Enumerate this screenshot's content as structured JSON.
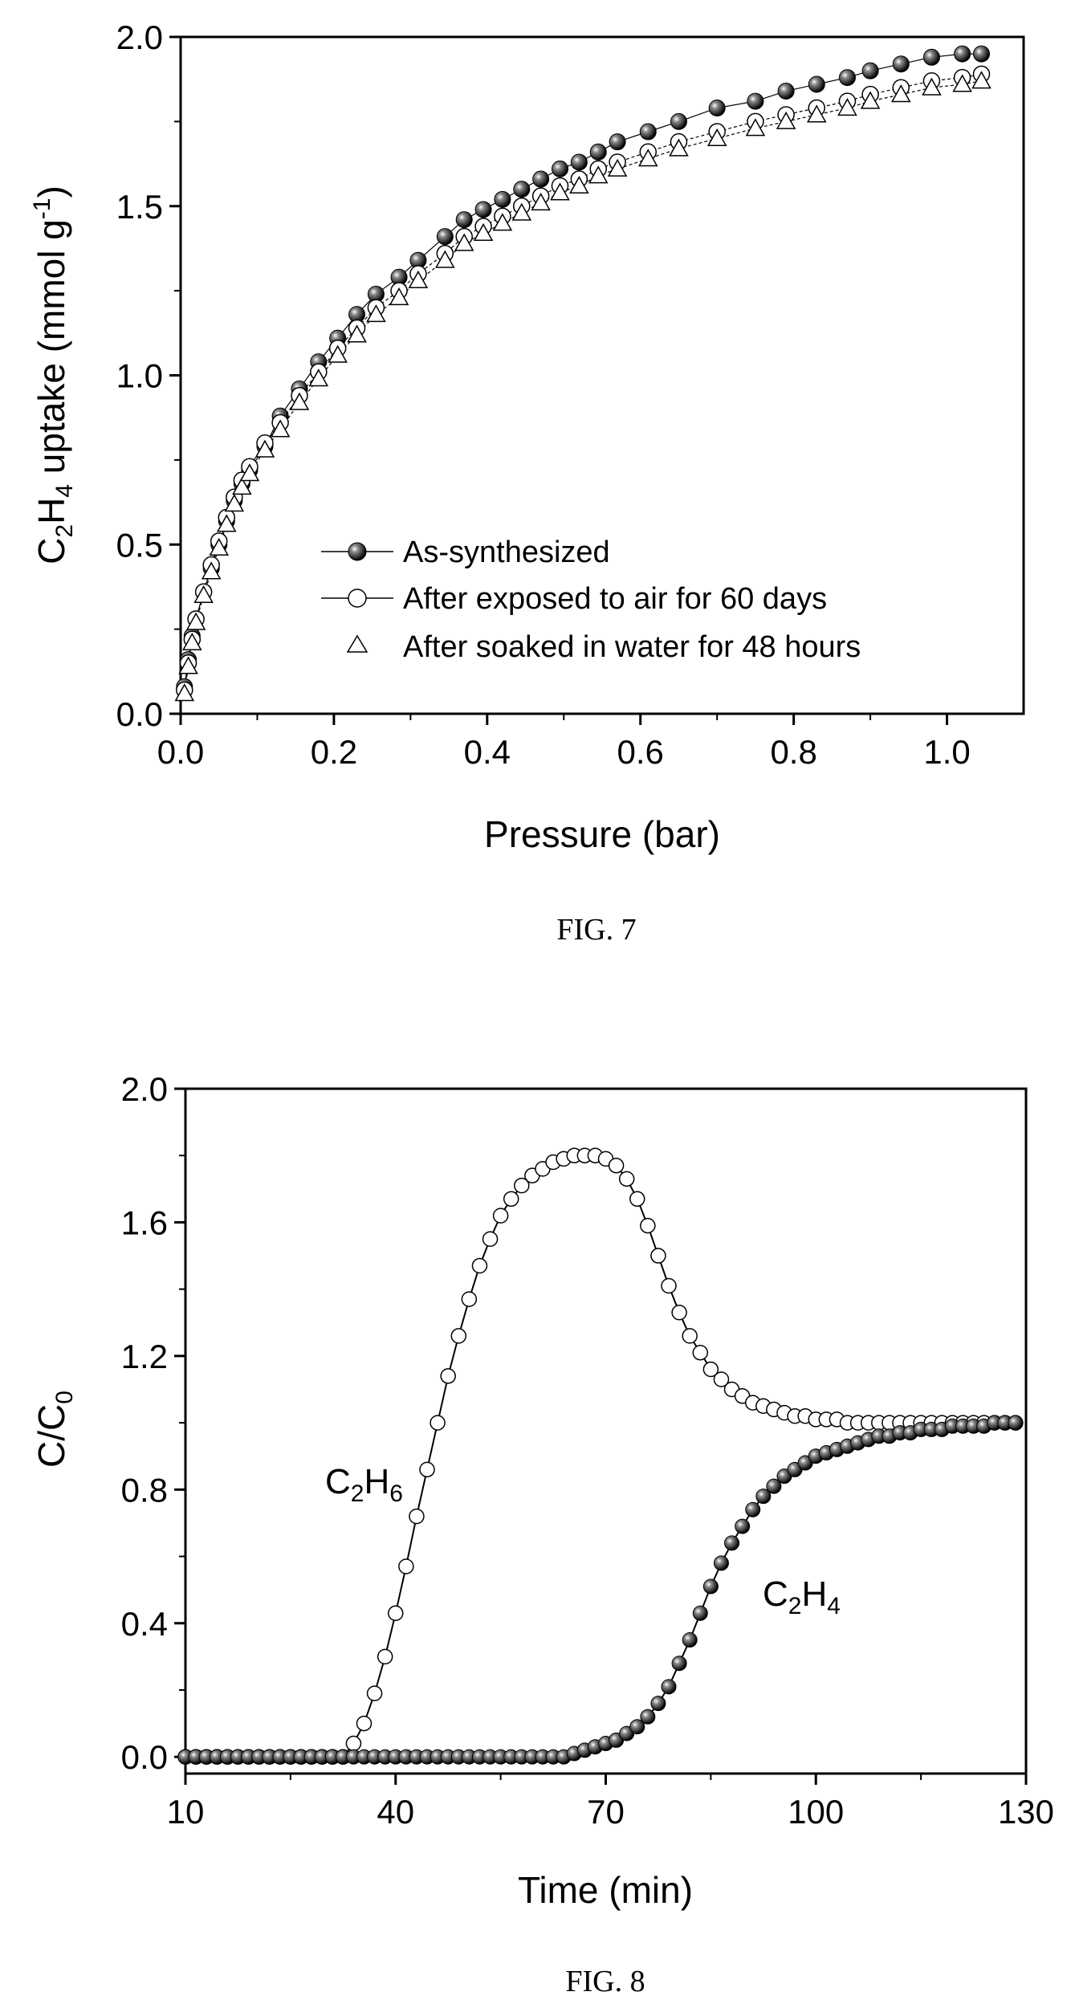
{
  "chart_data": [
    {
      "type": "scatter",
      "caption": "FIG. 7",
      "xlabel": "Pressure (bar)",
      "ylabel": {
        "base": "C",
        "sub1": "2",
        "mid": "H",
        "sub2": "4",
        "rest": " uptake (mmol g",
        "sup": "-1",
        "end": ")"
      },
      "xlim": [
        0.0,
        1.1
      ],
      "ylim": [
        0.0,
        2.0
      ],
      "xticks": [
        "0.0",
        "0.2",
        "0.4",
        "0.6",
        "0.8",
        "1.0"
      ],
      "xtick_values": [
        0.0,
        0.2,
        0.4,
        0.6,
        0.8,
        1.0
      ],
      "yticks": [
        "0.0",
        "0.5",
        "1.0",
        "1.5",
        "2.0"
      ],
      "ytick_values": [
        0.0,
        0.5,
        1.0,
        1.5,
        2.0
      ],
      "grid": false,
      "legend_position": "bottom-right",
      "series": [
        {
          "name": "As-synthesized",
          "marker": "filled-circle",
          "x": [
            0.005,
            0.01,
            0.015,
            0.02,
            0.03,
            0.04,
            0.05,
            0.06,
            0.07,
            0.08,
            0.09,
            0.11,
            0.13,
            0.155,
            0.18,
            0.205,
            0.23,
            0.255,
            0.285,
            0.31,
            0.345,
            0.37,
            0.395,
            0.42,
            0.445,
            0.47,
            0.495,
            0.52,
            0.545,
            0.57,
            0.61,
            0.65,
            0.7,
            0.75,
            0.79,
            0.83,
            0.87,
            0.9,
            0.94,
            0.98,
            1.02,
            1.045
          ],
          "y": [
            0.08,
            0.16,
            0.23,
            0.28,
            0.36,
            0.43,
            0.5,
            0.57,
            0.63,
            0.68,
            0.72,
            0.79,
            0.88,
            0.96,
            1.04,
            1.11,
            1.18,
            1.24,
            1.29,
            1.34,
            1.41,
            1.46,
            1.49,
            1.52,
            1.55,
            1.58,
            1.61,
            1.63,
            1.66,
            1.69,
            1.72,
            1.75,
            1.79,
            1.81,
            1.84,
            1.86,
            1.88,
            1.9,
            1.92,
            1.94,
            1.95,
            1.95
          ]
        },
        {
          "name": "After exposed to air for 60 days",
          "marker": "open-circle",
          "x": [
            0.005,
            0.01,
            0.015,
            0.02,
            0.03,
            0.04,
            0.05,
            0.06,
            0.07,
            0.08,
            0.09,
            0.11,
            0.13,
            0.155,
            0.18,
            0.205,
            0.23,
            0.255,
            0.285,
            0.31,
            0.345,
            0.37,
            0.395,
            0.42,
            0.445,
            0.47,
            0.495,
            0.52,
            0.545,
            0.57,
            0.61,
            0.65,
            0.7,
            0.75,
            0.79,
            0.83,
            0.87,
            0.9,
            0.94,
            0.98,
            1.02,
            1.045
          ],
          "y": [
            0.07,
            0.15,
            0.22,
            0.28,
            0.36,
            0.44,
            0.51,
            0.58,
            0.64,
            0.69,
            0.73,
            0.8,
            0.86,
            0.94,
            1.01,
            1.08,
            1.14,
            1.2,
            1.25,
            1.3,
            1.36,
            1.41,
            1.44,
            1.47,
            1.5,
            1.53,
            1.56,
            1.58,
            1.61,
            1.63,
            1.66,
            1.69,
            1.72,
            1.75,
            1.77,
            1.79,
            1.81,
            1.83,
            1.85,
            1.87,
            1.88,
            1.89
          ]
        },
        {
          "name": "After soaked in water for 48 hours",
          "marker": "open-triangle",
          "x": [
            0.005,
            0.01,
            0.015,
            0.02,
            0.03,
            0.04,
            0.05,
            0.06,
            0.07,
            0.08,
            0.09,
            0.11,
            0.13,
            0.155,
            0.18,
            0.205,
            0.23,
            0.255,
            0.285,
            0.31,
            0.345,
            0.37,
            0.395,
            0.42,
            0.445,
            0.47,
            0.495,
            0.52,
            0.545,
            0.57,
            0.61,
            0.65,
            0.7,
            0.75,
            0.79,
            0.83,
            0.87,
            0.9,
            0.94,
            0.98,
            1.02,
            1.045
          ],
          "y": [
            0.06,
            0.14,
            0.21,
            0.27,
            0.35,
            0.42,
            0.49,
            0.56,
            0.62,
            0.67,
            0.71,
            0.78,
            0.84,
            0.92,
            0.99,
            1.06,
            1.12,
            1.18,
            1.23,
            1.28,
            1.34,
            1.39,
            1.42,
            1.45,
            1.48,
            1.51,
            1.54,
            1.56,
            1.59,
            1.61,
            1.64,
            1.67,
            1.7,
            1.73,
            1.75,
            1.77,
            1.79,
            1.81,
            1.83,
            1.85,
            1.86,
            1.87
          ]
        }
      ]
    },
    {
      "type": "line",
      "caption": "FIG. 8",
      "xlabel": "Time (min)",
      "ylabel": {
        "base": "C/C",
        "sub": "0"
      },
      "xlim": [
        10,
        130
      ],
      "ylim": [
        -0.05,
        2.0
      ],
      "xticks": [
        "10",
        "40",
        "70",
        "100",
        "130"
      ],
      "xtick_values": [
        10,
        40,
        70,
        100,
        130
      ],
      "yticks": [
        "0.0",
        "0.4",
        "0.8",
        "1.2",
        "1.6",
        "2.0"
      ],
      "ytick_values": [
        0.0,
        0.4,
        0.8,
        1.2,
        1.6,
        2.0
      ],
      "grid": false,
      "annotations": [
        {
          "base": "C",
          "sub1": "2",
          "mid": "H",
          "sub2": "6",
          "anchor_series": 0
        },
        {
          "base": "C",
          "sub1": "2",
          "mid": "H",
          "sub2": "4",
          "anchor_series": 1
        }
      ],
      "series": [
        {
          "label": "C2H6",
          "marker": "open-circle",
          "x": [
            10,
            11.5,
            13,
            14.5,
            16,
            17.5,
            19,
            20.5,
            22,
            23.5,
            25,
            26.5,
            28,
            29.5,
            31,
            32.5,
            34,
            35.5,
            37,
            38.5,
            40,
            41.5,
            43,
            44.5,
            46,
            47.5,
            49,
            50.5,
            52,
            53.5,
            55,
            56.5,
            58,
            59.5,
            61,
            62.5,
            64,
            65.5,
            67,
            68.5,
            70,
            71.5,
            73,
            74.5,
            76,
            77.5,
            79,
            80.5,
            82,
            83.5,
            85,
            86.5,
            88,
            89.5,
            91,
            92.5,
            94,
            95.5,
            97,
            98.5,
            100,
            101.5,
            103,
            104.5,
            106,
            107.5,
            109,
            110.5,
            112,
            113.5,
            115,
            116.5,
            118,
            119.5,
            121,
            122.5,
            124,
            125.5,
            127,
            128.5
          ],
          "y": [
            0.0,
            0.0,
            0.0,
            0.0,
            0.0,
            0.0,
            0.0,
            0.0,
            0.0,
            0.0,
            0.0,
            0.0,
            0.0,
            0.0,
            0.0,
            0.0,
            0.04,
            0.1,
            0.19,
            0.3,
            0.43,
            0.57,
            0.72,
            0.86,
            1.0,
            1.14,
            1.26,
            1.37,
            1.47,
            1.55,
            1.62,
            1.67,
            1.71,
            1.74,
            1.76,
            1.78,
            1.79,
            1.8,
            1.8,
            1.8,
            1.79,
            1.77,
            1.73,
            1.67,
            1.59,
            1.5,
            1.41,
            1.33,
            1.26,
            1.21,
            1.16,
            1.13,
            1.1,
            1.08,
            1.06,
            1.05,
            1.04,
            1.03,
            1.02,
            1.02,
            1.01,
            1.01,
            1.01,
            1.0,
            1.0,
            1.0,
            1.0,
            1.0,
            1.0,
            1.0,
            1.0,
            1.0,
            1.0,
            1.0,
            1.0,
            1.0,
            1.0,
            1.0,
            1.0,
            1.0
          ]
        },
        {
          "label": "C2H4",
          "marker": "filled-circle",
          "x": [
            10,
            11.5,
            13,
            14.5,
            16,
            17.5,
            19,
            20.5,
            22,
            23.5,
            25,
            26.5,
            28,
            29.5,
            31,
            32.5,
            34,
            35.5,
            37,
            38.5,
            40,
            41.5,
            43,
            44.5,
            46,
            47.5,
            49,
            50.5,
            52,
            53.5,
            55,
            56.5,
            58,
            59.5,
            61,
            62.5,
            64,
            65.5,
            67,
            68.5,
            70,
            71.5,
            73,
            74.5,
            76,
            77.5,
            79,
            80.5,
            82,
            83.5,
            85,
            86.5,
            88,
            89.5,
            91,
            92.5,
            94,
            95.5,
            97,
            98.5,
            100,
            101.5,
            103,
            104.5,
            106,
            107.5,
            109,
            110.5,
            112,
            113.5,
            115,
            116.5,
            118,
            119.5,
            121,
            122.5,
            124,
            125.5,
            127,
            128.5
          ],
          "y": [
            0.0,
            0.0,
            0.0,
            0.0,
            0.0,
            0.0,
            0.0,
            0.0,
            0.0,
            0.0,
            0.0,
            0.0,
            0.0,
            0.0,
            0.0,
            0.0,
            0.0,
            0.0,
            0.0,
            0.0,
            0.0,
            0.0,
            0.0,
            0.0,
            0.0,
            0.0,
            0.0,
            0.0,
            0.0,
            0.0,
            0.0,
            0.0,
            0.0,
            0.0,
            0.0,
            0.0,
            0.0,
            0.01,
            0.02,
            0.03,
            0.04,
            0.05,
            0.07,
            0.09,
            0.12,
            0.16,
            0.21,
            0.28,
            0.35,
            0.43,
            0.51,
            0.58,
            0.64,
            0.69,
            0.74,
            0.78,
            0.81,
            0.84,
            0.86,
            0.88,
            0.9,
            0.91,
            0.92,
            0.93,
            0.94,
            0.95,
            0.96,
            0.96,
            0.97,
            0.97,
            0.98,
            0.98,
            0.98,
            0.99,
            0.99,
            0.99,
            0.99,
            1.0,
            1.0,
            1.0
          ]
        }
      ]
    }
  ]
}
